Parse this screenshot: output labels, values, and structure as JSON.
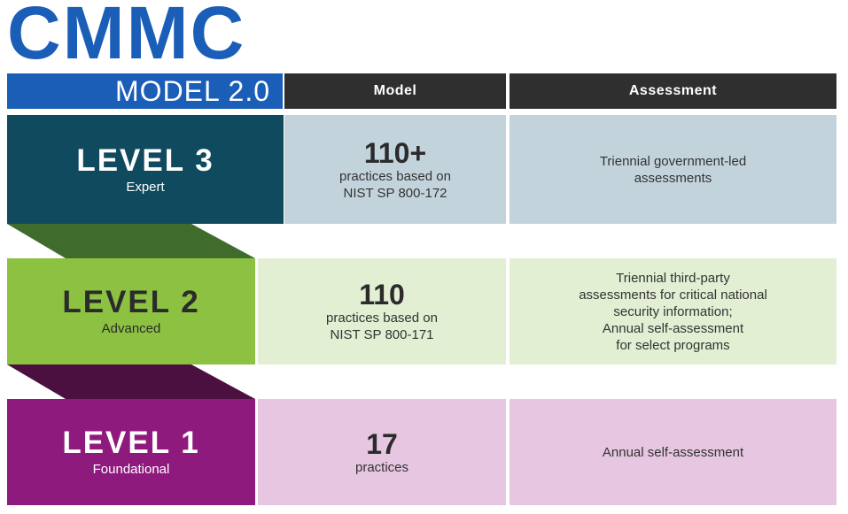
{
  "title": "CMMC",
  "subtitle": "MODEL 2.0",
  "columns": {
    "model": "Model",
    "assessment": "Assessment"
  },
  "colors": {
    "brand_blue": "#1b5eb8",
    "header_dark": "#2f2f2f"
  },
  "levels": [
    {
      "name": "LEVEL 3",
      "tier": "Expert",
      "count": "110+",
      "model_lines": [
        "practices based on",
        "NIST SP 800-172"
      ],
      "assessment_lines": [
        "Triennial government-led",
        "assessments"
      ],
      "colors": {
        "label": "#0f4a5f",
        "cell": "#c3d3dc",
        "connector": "#3f6c2d"
      }
    },
    {
      "name": "LEVEL 2",
      "tier": "Advanced",
      "count": "110",
      "model_lines": [
        "practices based on",
        "NIST SP 800-171"
      ],
      "assessment_lines": [
        "Triennial third-party",
        "assessments for critical national",
        "security information;",
        "Annual self-assessment",
        "for select programs"
      ],
      "colors": {
        "label": "#8cc141",
        "label_text": "#2b2b2b",
        "cell": "#e2efd3",
        "connector": "#4b1040"
      }
    },
    {
      "name": "LEVEL 1",
      "tier": "Foundational",
      "count": "17",
      "model_lines": [
        "practices"
      ],
      "assessment_lines": [
        "Annual self-assessment"
      ],
      "colors": {
        "label": "#8f1a7e",
        "cell": "#e6c6e0"
      }
    }
  ]
}
